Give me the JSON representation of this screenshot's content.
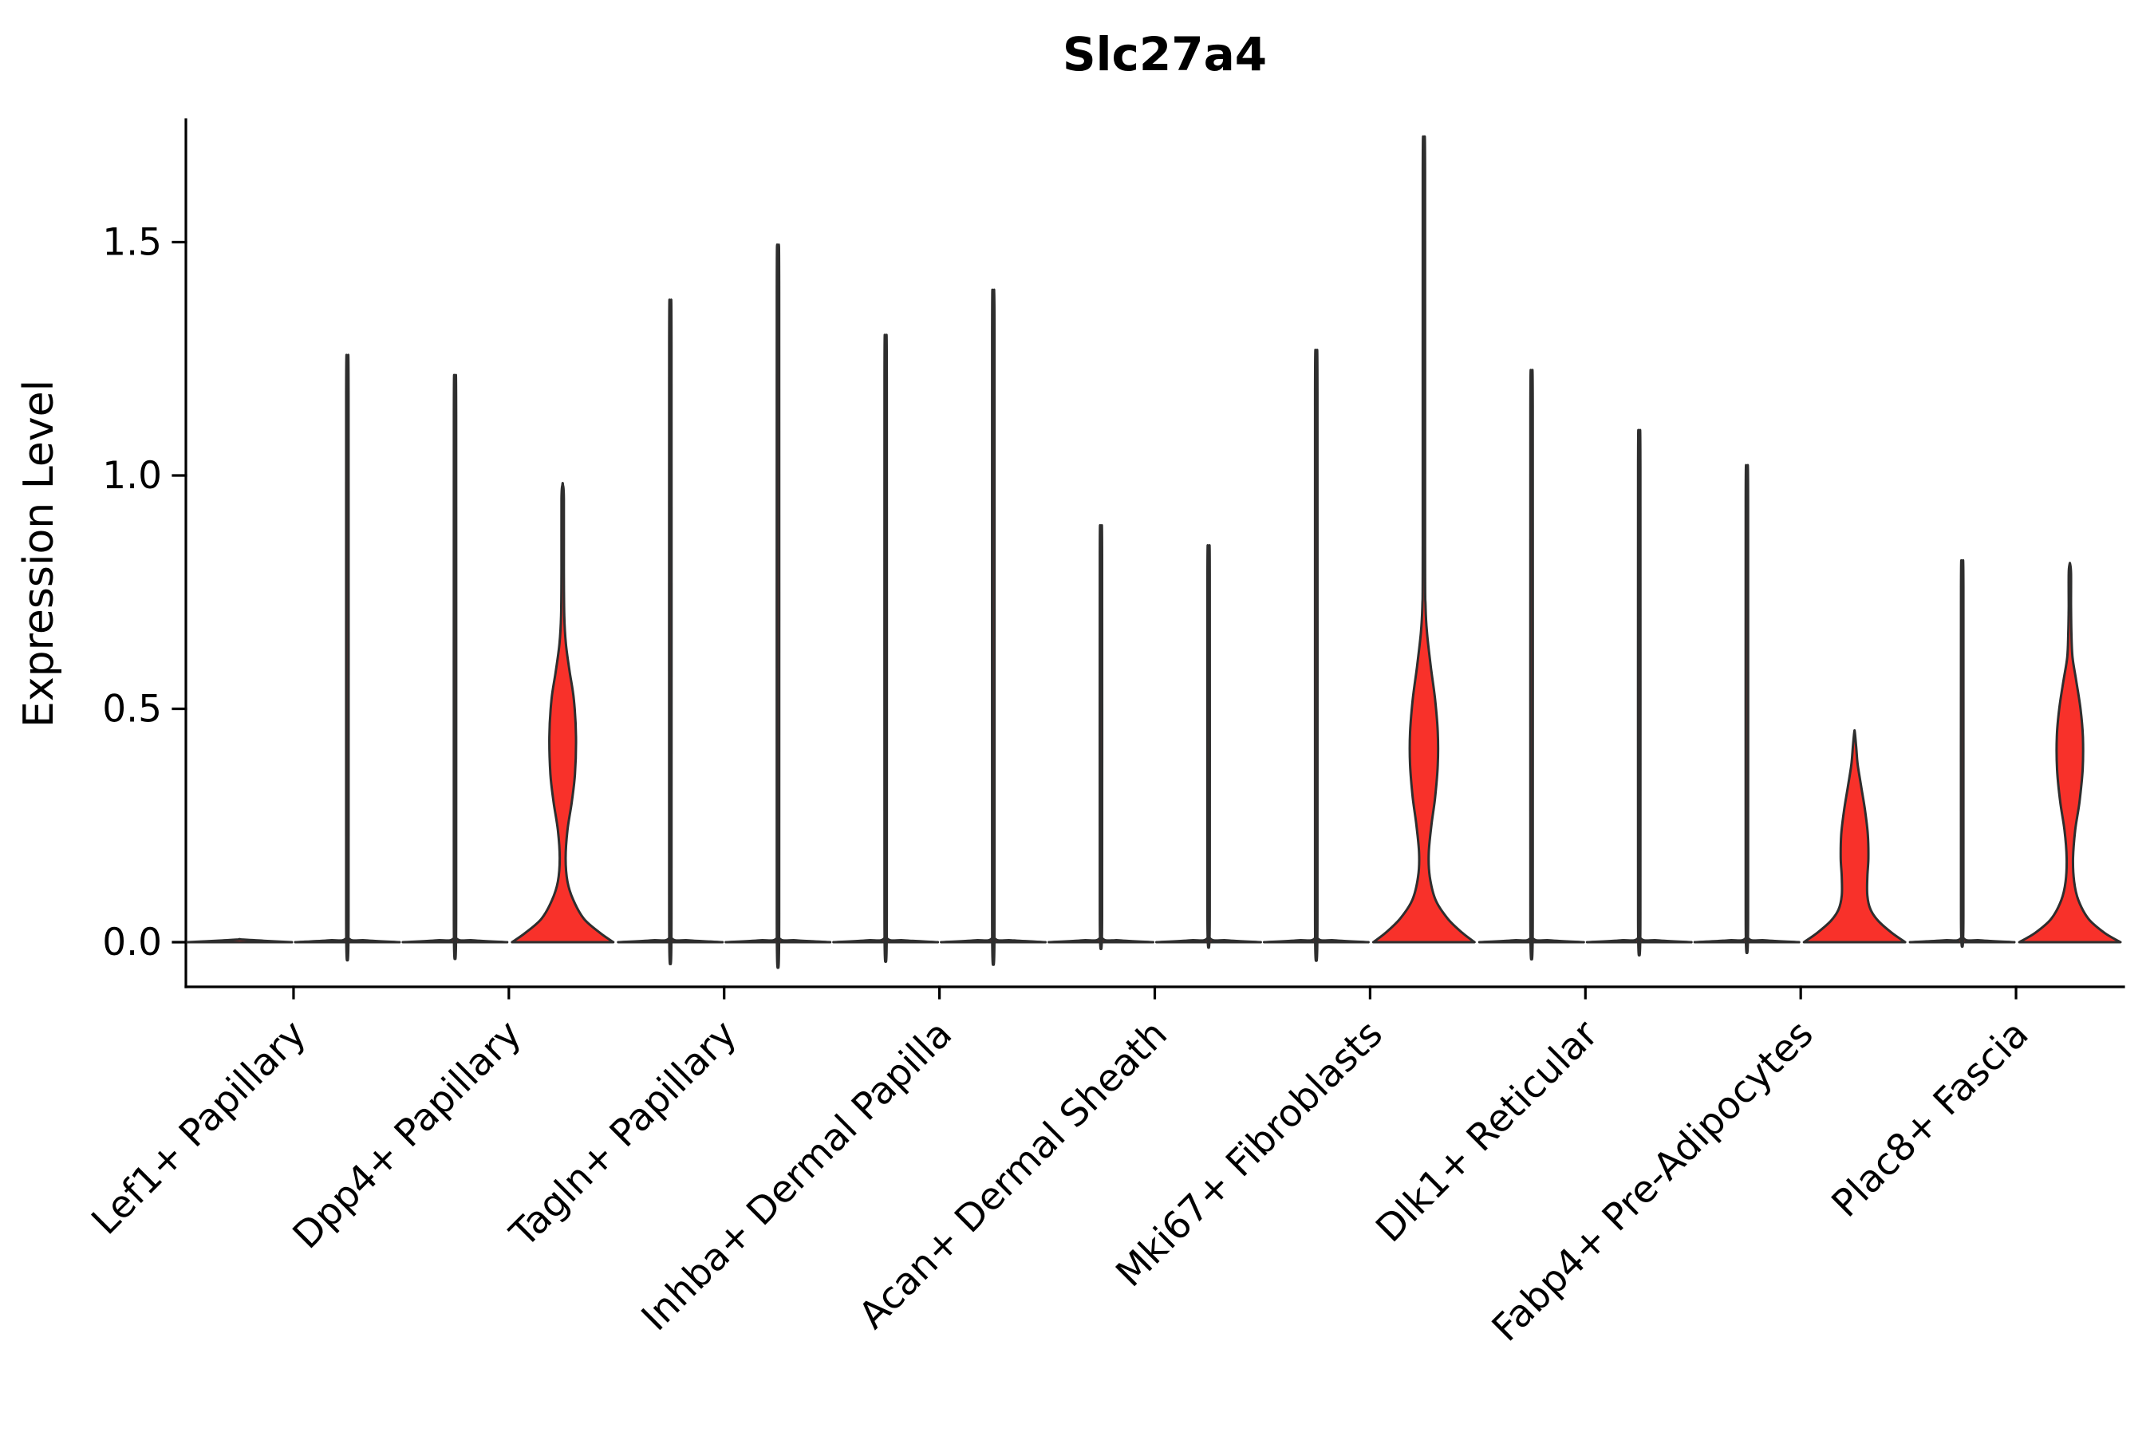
{
  "chart_data": {
    "type": "violin",
    "title": "Slc27a4",
    "ylabel": "Expression Level",
    "xlabel": "",
    "grid": false,
    "legend": null,
    "ylim": [
      -0.095,
      1.76
    ],
    "yticks": [
      {
        "label": "0.0",
        "value": 0.0
      },
      {
        "label": "0.5",
        "value": 0.5
      },
      {
        "label": "1.0",
        "value": 1.0
      },
      {
        "label": "1.5",
        "value": 1.5
      }
    ],
    "fill_color": "#F8312A",
    "stroke_color": "#2E2E2E",
    "axis_color": "#000000",
    "categories": [
      "Lef1+ Papillary",
      "Dpp4+ Papillary",
      "Tagln+ Papillary",
      "Inhba+ Dermal Papilla",
      "Acan+ Dermal Sheath",
      "Mki67+ Fibroblasts",
      "Dlk1+ Reticular",
      "Fabp4+ Pre-Adipocytes",
      "Plac8+ Fascia"
    ],
    "violins": [
      {
        "category": "Lef1+ Papillary",
        "pair": [
          {
            "max": 0.0,
            "profile": [
              [
                0,
                0.98
              ],
              [
                0.003,
                0.45
              ],
              [
                0.006,
                0.005
              ]
            ]
          },
          {
            "max": 1.19,
            "profile": [
              [
                0,
                0.98
              ],
              [
                0.004,
                0.35
              ],
              [
                0.009,
                0.022
              ],
              [
                0.06,
                0.022
              ],
              [
                1.17,
                0.022
              ],
              [
                1.19,
                0.005
              ]
            ]
          }
        ]
      },
      {
        "category": "Dpp4+ Papillary",
        "pair": [
          {
            "max": 1.15,
            "profile": [
              [
                0,
                0.98
              ],
              [
                0.004,
                0.35
              ],
              [
                0.009,
                0.022
              ],
              [
                0.06,
                0.022
              ],
              [
                1.13,
                0.022
              ],
              [
                1.15,
                0.005
              ]
            ]
          },
          {
            "max": 0.98,
            "profile": [
              [
                0,
                0.95
              ],
              [
                0.02,
                0.7
              ],
              [
                0.05,
                0.4
              ],
              [
                0.09,
                0.2
              ],
              [
                0.13,
                0.09
              ],
              [
                0.18,
                0.055
              ],
              [
                0.24,
                0.09
              ],
              [
                0.3,
                0.17
              ],
              [
                0.36,
                0.23
              ],
              [
                0.44,
                0.25
              ],
              [
                0.52,
                0.21
              ],
              [
                0.58,
                0.13
              ],
              [
                0.64,
                0.06
              ],
              [
                0.7,
                0.03
              ],
              [
                0.8,
                0.022
              ],
              [
                0.95,
                0.022
              ],
              [
                0.98,
                0.005
              ]
            ]
          }
        ]
      },
      {
        "category": "Tagln+ Papillary",
        "pair": [
          {
            "max": 1.3,
            "profile": [
              [
                0,
                0.98
              ],
              [
                0.004,
                0.35
              ],
              [
                0.009,
                0.022
              ],
              [
                0.06,
                0.022
              ],
              [
                1.28,
                0.022
              ],
              [
                1.3,
                0.005
              ]
            ]
          },
          {
            "max": 1.41,
            "profile": [
              [
                0,
                0.98
              ],
              [
                0.004,
                0.35
              ],
              [
                0.009,
                0.022
              ],
              [
                0.06,
                0.022
              ],
              [
                1.39,
                0.022
              ],
              [
                1.41,
                0.005
              ]
            ]
          }
        ]
      },
      {
        "category": "Inhba+ Dermal Papilla",
        "pair": [
          {
            "max": 1.23,
            "profile": [
              [
                0,
                0.98
              ],
              [
                0.004,
                0.35
              ],
              [
                0.009,
                0.022
              ],
              [
                0.06,
                0.022
              ],
              [
                1.21,
                0.022
              ],
              [
                1.23,
                0.005
              ]
            ]
          },
          {
            "max": 1.32,
            "profile": [
              [
                0,
                0.98
              ],
              [
                0.004,
                0.35
              ],
              [
                0.009,
                0.022
              ],
              [
                0.06,
                0.022
              ],
              [
                1.3,
                0.022
              ],
              [
                1.32,
                0.005
              ]
            ]
          }
        ]
      },
      {
        "category": "Acan+ Dermal Sheath",
        "pair": [
          {
            "max": 0.85,
            "profile": [
              [
                0,
                0.98
              ],
              [
                0.004,
                0.35
              ],
              [
                0.009,
                0.022
              ],
              [
                0.06,
                0.022
              ],
              [
                0.83,
                0.022
              ],
              [
                0.85,
                0.005
              ]
            ]
          },
          {
            "max": 0.81,
            "profile": [
              [
                0,
                0.98
              ],
              [
                0.004,
                0.35
              ],
              [
                0.009,
                0.022
              ],
              [
                0.06,
                0.022
              ],
              [
                0.79,
                0.022
              ],
              [
                0.81,
                0.005
              ]
            ]
          }
        ]
      },
      {
        "category": "Mki67+ Fibroblasts",
        "pair": [
          {
            "max": 1.2,
            "profile": [
              [
                0,
                0.98
              ],
              [
                0.004,
                0.35
              ],
              [
                0.009,
                0.022
              ],
              [
                0.06,
                0.022
              ],
              [
                1.18,
                0.022
              ],
              [
                1.2,
                0.005
              ]
            ]
          },
          {
            "max": 1.7,
            "profile": [
              [
                0,
                0.95
              ],
              [
                0.02,
                0.72
              ],
              [
                0.05,
                0.45
              ],
              [
                0.09,
                0.22
              ],
              [
                0.14,
                0.11
              ],
              [
                0.19,
                0.09
              ],
              [
                0.25,
                0.14
              ],
              [
                0.31,
                0.21
              ],
              [
                0.38,
                0.26
              ],
              [
                0.45,
                0.26
              ],
              [
                0.52,
                0.21
              ],
              [
                0.59,
                0.13
              ],
              [
                0.66,
                0.06
              ],
              [
                0.72,
                0.03
              ],
              [
                0.85,
                0.022
              ],
              [
                1.65,
                0.022
              ],
              [
                1.7,
                0.005
              ]
            ]
          }
        ]
      },
      {
        "category": "Dlk1+ Reticular",
        "pair": [
          {
            "max": 1.16,
            "profile": [
              [
                0,
                0.98
              ],
              [
                0.004,
                0.35
              ],
              [
                0.009,
                0.022
              ],
              [
                0.06,
                0.022
              ],
              [
                1.14,
                0.022
              ],
              [
                1.16,
                0.005
              ]
            ]
          },
          {
            "max": 1.04,
            "profile": [
              [
                0,
                0.98
              ],
              [
                0.004,
                0.35
              ],
              [
                0.009,
                0.022
              ],
              [
                0.06,
                0.022
              ],
              [
                1.02,
                0.022
              ],
              [
                1.04,
                0.005
              ]
            ]
          }
        ]
      },
      {
        "category": "Fabp4+ Pre-Adipocytes",
        "pair": [
          {
            "max": 0.97,
            "profile": [
              [
                0,
                0.98
              ],
              [
                0.004,
                0.35
              ],
              [
                0.009,
                0.022
              ],
              [
                0.06,
                0.022
              ],
              [
                0.95,
                0.022
              ],
              [
                0.97,
                0.005
              ]
            ]
          },
          {
            "max": 0.45,
            "profile": [
              [
                0,
                0.95
              ],
              [
                0.02,
                0.7
              ],
              [
                0.045,
                0.45
              ],
              [
                0.07,
                0.3
              ],
              [
                0.1,
                0.24
              ],
              [
                0.14,
                0.24
              ],
              [
                0.18,
                0.26
              ],
              [
                0.23,
                0.25
              ],
              [
                0.28,
                0.2
              ],
              [
                0.33,
                0.13
              ],
              [
                0.38,
                0.06
              ],
              [
                0.42,
                0.03
              ],
              [
                0.45,
                0.005
              ]
            ]
          }
        ]
      },
      {
        "category": "Plac8+ Fascia",
        "pair": [
          {
            "max": 0.78,
            "profile": [
              [
                0,
                0.98
              ],
              [
                0.004,
                0.35
              ],
              [
                0.009,
                0.022
              ],
              [
                0.06,
                0.022
              ],
              [
                0.76,
                0.022
              ],
              [
                0.78,
                0.005
              ]
            ]
          },
          {
            "max": 0.81,
            "profile": [
              [
                0,
                0.95
              ],
              [
                0.02,
                0.65
              ],
              [
                0.05,
                0.35
              ],
              [
                0.09,
                0.16
              ],
              [
                0.13,
                0.08
              ],
              [
                0.18,
                0.06
              ],
              [
                0.24,
                0.1
              ],
              [
                0.3,
                0.18
              ],
              [
                0.37,
                0.24
              ],
              [
                0.44,
                0.245
              ],
              [
                0.5,
                0.2
              ],
              [
                0.56,
                0.12
              ],
              [
                0.61,
                0.05
              ],
              [
                0.66,
                0.03
              ],
              [
                0.72,
                0.022
              ],
              [
                0.79,
                0.022
              ],
              [
                0.81,
                0.005
              ]
            ]
          }
        ]
      }
    ]
  }
}
